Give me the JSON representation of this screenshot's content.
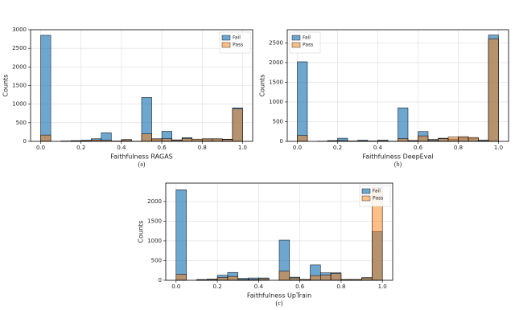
{
  "chart_data": [
    {
      "type": "histogram",
      "xlabel": "Faithfulness RAGAS",
      "ylabel": "Counts",
      "caption": "(a)",
      "bins": [
        0,
        0.05,
        0.1,
        0.15,
        0.2,
        0.25,
        0.3,
        0.35,
        0.4,
        0.45,
        0.5,
        0.55,
        0.6,
        0.65,
        0.7,
        0.75,
        0.8,
        0.85,
        0.9,
        0.95,
        1
      ],
      "series": [
        {
          "name": "Fail",
          "color": "#1f77b4",
          "values": [
            2850,
            0,
            10,
            20,
            30,
            70,
            230,
            10,
            50,
            5,
            1180,
            60,
            270,
            40,
            100,
            60,
            60,
            60,
            60,
            900
          ]
        },
        {
          "name": "Pass",
          "color": "#ff7f0e",
          "values": [
            170,
            0,
            5,
            10,
            20,
            40,
            30,
            5,
            40,
            5,
            200,
            70,
            70,
            30,
            80,
            60,
            70,
            70,
            50,
            870
          ]
        }
      ],
      "xlim": [
        -0.05,
        1.05
      ],
      "xticks": [
        {
          "value": 0,
          "label": "0.0"
        },
        0.2,
        0.4,
        0.6,
        0.8,
        {
          "value": 1,
          "label": "1.0"
        }
      ],
      "ylim": [
        0,
        3000
      ],
      "yticks": [
        0,
        500,
        1000,
        1500,
        2000,
        2500,
        3000
      ],
      "grid": true,
      "legend": "upper right"
    },
    {
      "type": "histogram",
      "xlabel": "Faithfulness DeepEval",
      "ylabel": "Counts",
      "caption": "(b)",
      "bins": [
        0,
        0.05,
        0.1,
        0.15,
        0.2,
        0.25,
        0.3,
        0.35,
        0.4,
        0.45,
        0.5,
        0.55,
        0.6,
        0.65,
        0.7,
        0.75,
        0.8,
        0.85,
        0.9,
        0.95,
        1
      ],
      "series": [
        {
          "name": "Fail",
          "color": "#1f77b4",
          "values": [
            2020,
            0,
            5,
            20,
            80,
            10,
            30,
            10,
            30,
            5,
            850,
            20,
            250,
            50,
            80,
            60,
            100,
            80,
            30,
            2700
          ]
        },
        {
          "name": "Pass",
          "color": "#ff7f0e",
          "values": [
            150,
            0,
            5,
            10,
            20,
            5,
            10,
            5,
            20,
            5,
            70,
            20,
            140,
            30,
            70,
            110,
            120,
            100,
            20,
            2600
          ]
        }
      ],
      "xlim": [
        -0.05,
        1.05
      ],
      "xticks": [
        {
          "value": 0,
          "label": "0.0"
        },
        0.2,
        0.4,
        0.6,
        0.8,
        {
          "value": 1,
          "label": "1.0"
        }
      ],
      "ylim": [
        0,
        2835
      ],
      "yticks": [
        0,
        500,
        1000,
        1500,
        2000,
        2500
      ],
      "grid": true,
      "legend": "upper left"
    },
    {
      "type": "histogram",
      "xlabel": "Faithfulness UpTrain",
      "ylabel": "Counts",
      "caption": "(c)",
      "bins": [
        0,
        0.05,
        0.1,
        0.15,
        0.2,
        0.25,
        0.3,
        0.35,
        0.4,
        0.45,
        0.5,
        0.55,
        0.6,
        0.65,
        0.7,
        0.75,
        0.8,
        0.85,
        0.9,
        0.95,
        1
      ],
      "series": [
        {
          "name": "Fail",
          "color": "#1f77b4",
          "values": [
            2300,
            0,
            20,
            30,
            130,
            200,
            50,
            60,
            60,
            0,
            1020,
            80,
            20,
            390,
            190,
            190,
            20,
            20,
            70,
            1240
          ]
        },
        {
          "name": "Pass",
          "color": "#ff7f0e",
          "values": [
            150,
            0,
            10,
            20,
            70,
            100,
            20,
            20,
            40,
            0,
            230,
            60,
            20,
            120,
            130,
            170,
            20,
            20,
            60,
            2350
          ]
        }
      ],
      "xlim": [
        -0.05,
        1.05
      ],
      "xticks": [
        {
          "value": 0,
          "label": "0.0"
        },
        0.2,
        0.4,
        0.6,
        0.8,
        {
          "value": 1,
          "label": "1.0"
        }
      ],
      "ylim": [
        0,
        2468
      ],
      "yticks": [
        0,
        500,
        1000,
        1500,
        2000
      ],
      "grid": true,
      "legend": "upper right"
    }
  ]
}
